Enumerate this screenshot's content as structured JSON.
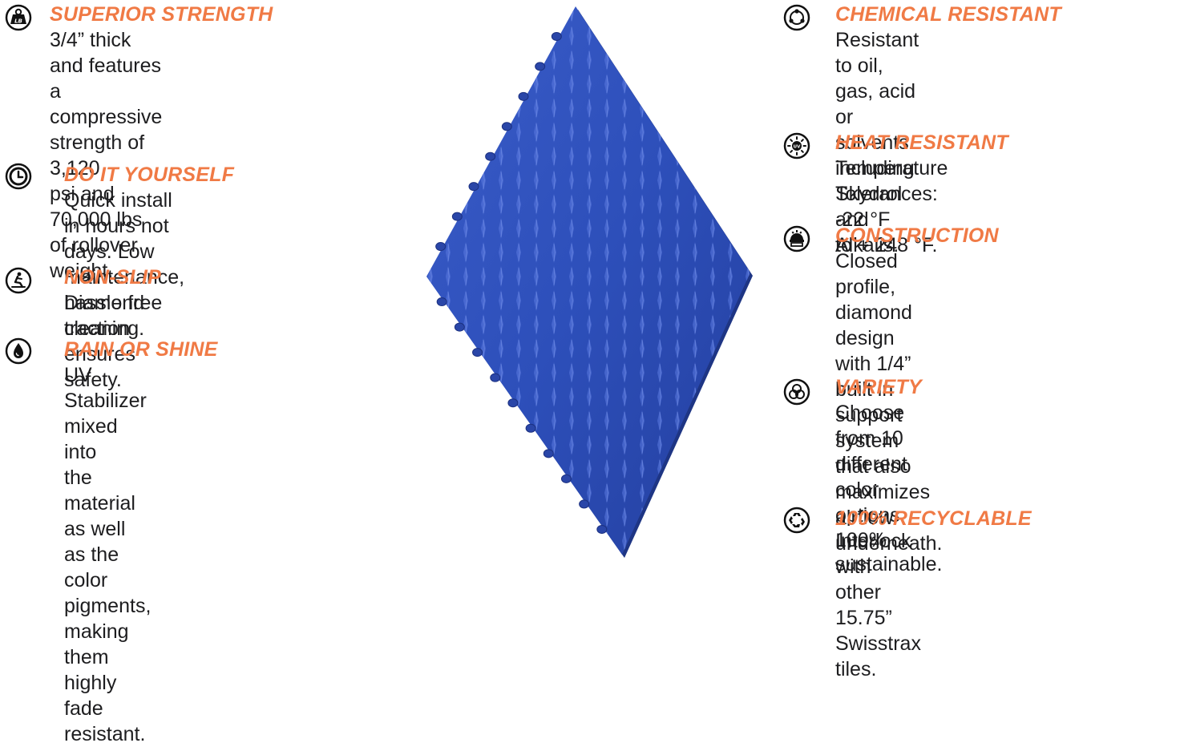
{
  "colors": {
    "accent": "#F07A45",
    "text": "#1d1d1f",
    "icon": "#111111",
    "tile": "#2D4FBA"
  },
  "left_features": [
    {
      "icon": "weight-lb-icon",
      "title": "SUPERIOR STRENGTH",
      "description": "3/4” thick and features a\ncompressive strength of 3,120\npsi and 70,000 lbs of rollover\nweight."
    },
    {
      "icon": "clock-icon",
      "title": "DO IT YOURSELF",
      "description": "Quick install in hours not days. Low\nmaintenance, hassle free cleaning."
    },
    {
      "icon": "non-slip-person-icon",
      "title": "NON-SLIP",
      "description": "Diamond traction ensures safety."
    },
    {
      "icon": "water-drop-icon",
      "title": "RAIN OR SHINE",
      "description": "UV Stabilizer mixed into\nthe material as well as the\ncolor pigments, making\nthem highly fade resistant."
    }
  ],
  "right_features": [
    {
      "icon": "chemical-molecule-icon",
      "title": "CHEMICAL RESISTANT",
      "description": "Resistant to oil, gas, acid\nor solvents including\nSkydrol and Alkalis."
    },
    {
      "icon": "uv-sun-icon",
      "title": "HEAT RESISTANT",
      "description": "Temperature Tolerances: -22 °F\nto + 248 °F."
    },
    {
      "icon": "construction-helmet-icon",
      "title": "CONSTRUCTION",
      "description": "Closed profile, diamond design\nwith 1/4” built in support system\nthat also maximizes airflow\nunderneath."
    },
    {
      "icon": "color-variety-circles-icon",
      "title": "VARIETY",
      "description": "Choose from 10 different\ncolor options. Interlock with\nother 15.75” Swisstrax tiles."
    },
    {
      "icon": "recycle-icon",
      "title": "100% RECYCLABLE",
      "description": "100% sustainable."
    }
  ],
  "icon_labels": {
    "weight": "LB",
    "uv": "UV"
  }
}
